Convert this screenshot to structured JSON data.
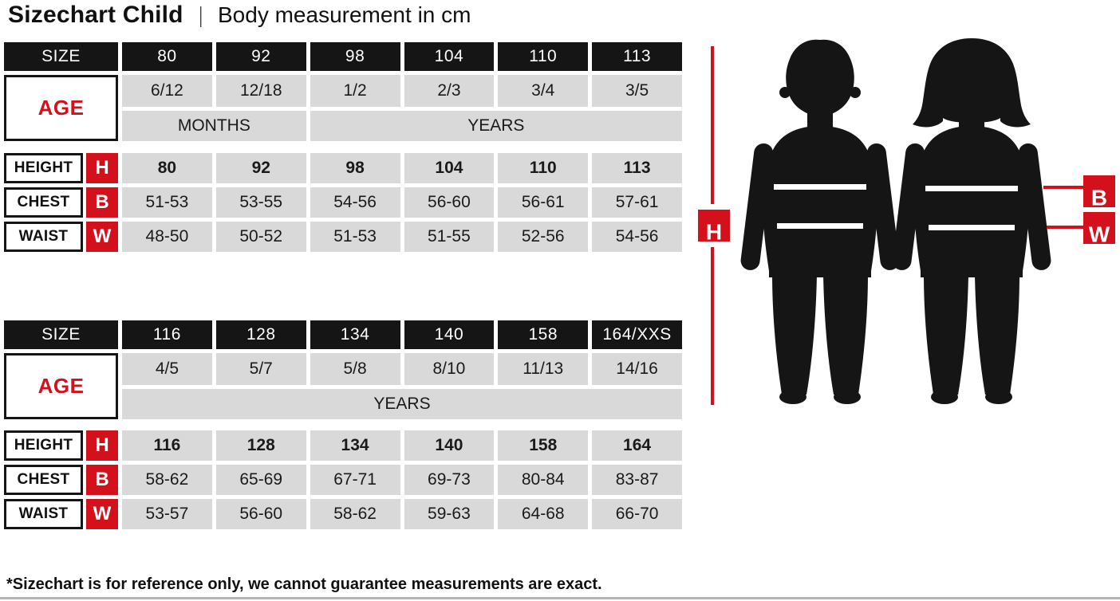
{
  "title": {
    "main": "Sizechart Child",
    "separator": "|",
    "subtitle": "Body measurement in cm"
  },
  "tables": [
    {
      "size_label": "SIZE",
      "age_label": "AGE",
      "sizes": [
        "80",
        "92",
        "98",
        "104",
        "110",
        "113"
      ],
      "ages": [
        "6/12",
        "12/18",
        "1/2",
        "2/3",
        "3/4",
        "3/5"
      ],
      "age_units": [
        {
          "label": "MONTHS",
          "span": 2
        },
        {
          "label": "YEARS",
          "span": 4
        }
      ],
      "rows": [
        {
          "label": "HEIGHT",
          "letter": "H",
          "bold": true,
          "values": [
            "80",
            "92",
            "98",
            "104",
            "110",
            "113"
          ]
        },
        {
          "label": "CHEST",
          "letter": "B",
          "bold": false,
          "values": [
            "51-53",
            "53-55",
            "54-56",
            "56-60",
            "56-61",
            "57-61"
          ]
        },
        {
          "label": "WAIST",
          "letter": "W",
          "bold": false,
          "values": [
            "48-50",
            "50-52",
            "51-53",
            "51-55",
            "52-56",
            "54-56"
          ]
        }
      ]
    },
    {
      "size_label": "SIZE",
      "age_label": "AGE",
      "sizes": [
        "116",
        "128",
        "134",
        "140",
        "158",
        "164/XXS"
      ],
      "ages": [
        "4/5",
        "5/7",
        "5/8",
        "8/10",
        "11/13",
        "14/16"
      ],
      "age_units": [
        {
          "label": "YEARS",
          "span": 6
        }
      ],
      "rows": [
        {
          "label": "HEIGHT",
          "letter": "H",
          "bold": true,
          "values": [
            "116",
            "128",
            "134",
            "140",
            "158",
            "164"
          ]
        },
        {
          "label": "CHEST",
          "letter": "B",
          "bold": false,
          "values": [
            "58-62",
            "65-69",
            "67-71",
            "69-73",
            "80-84",
            "83-87"
          ]
        },
        {
          "label": "WAIST",
          "letter": "W",
          "bold": false,
          "values": [
            "53-57",
            "56-60",
            "58-62",
            "59-63",
            "64-68",
            "66-70"
          ]
        }
      ]
    }
  ],
  "figure": {
    "height_label": "H",
    "chest_label": "B",
    "waist_label": "W"
  },
  "footer": {
    "note": "*Sizechart is for reference only, we cannot guarantee measurements are exact."
  },
  "colors": {
    "red": "#d2111c",
    "ink": "#151515",
    "cell_gray": "#d9d9d9"
  }
}
